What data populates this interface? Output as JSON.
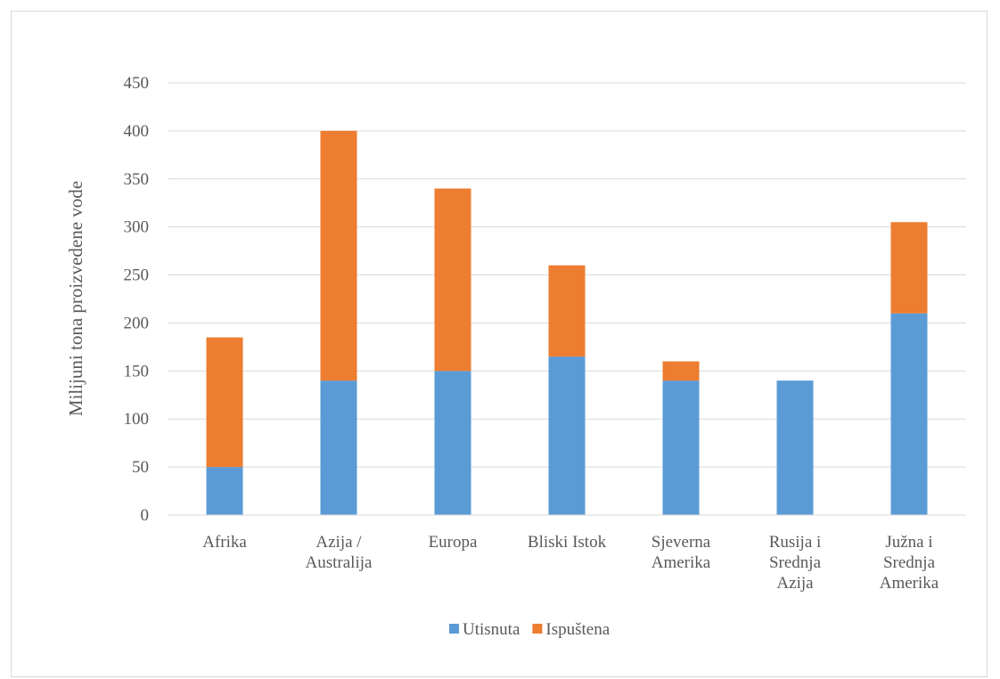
{
  "chart_data": {
    "type": "bar",
    "stacked": true,
    "categories": [
      [
        "Afrika"
      ],
      [
        "Azija /",
        "Australija"
      ],
      [
        "Europa"
      ],
      [
        "Bliski Istok"
      ],
      [
        "Sjeverna",
        "Amerika"
      ],
      [
        "Rusija i",
        "Srednja",
        "Azija"
      ],
      [
        "Južna i",
        "Srednja",
        "Amerika"
      ]
    ],
    "series": [
      {
        "name": "Utisnuta",
        "color": "#5b9bd5",
        "values": [
          50,
          140,
          150,
          165,
          140,
          140,
          210
        ]
      },
      {
        "name": "Ispuštena",
        "color": "#ed7d31",
        "values": [
          135,
          260,
          190,
          95,
          20,
          0,
          95
        ]
      }
    ],
    "ylabel": "Milijuni tona proizvedene vode",
    "xlabel": "",
    "title": "",
    "ylim": [
      0,
      450
    ],
    "yticks": [
      0,
      50,
      100,
      150,
      200,
      250,
      300,
      350,
      400,
      450
    ],
    "grid": true,
    "legend_position": "bottom"
  }
}
